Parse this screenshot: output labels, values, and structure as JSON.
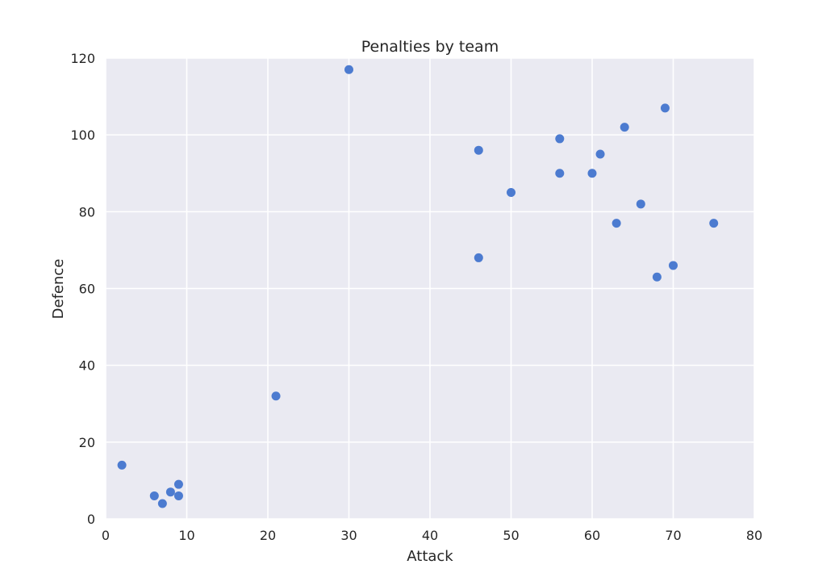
{
  "chart_data": {
    "type": "scatter",
    "title": "Penalties by team",
    "xlabel": "Attack",
    "ylabel": "Defence",
    "xlim": [
      0,
      80
    ],
    "ylim": [
      0,
      120
    ],
    "xticks": [
      "0",
      "10",
      "20",
      "30",
      "40",
      "50",
      "60",
      "70",
      "80"
    ],
    "yticks": [
      "0",
      "20",
      "40",
      "60",
      "80",
      "100",
      "120"
    ],
    "grid": true,
    "background_color": "#eaeaf2",
    "grid_color": "#ffffff",
    "point_color": "#4c7bd0",
    "points": [
      {
        "x": 2,
        "y": 14
      },
      {
        "x": 6,
        "y": 6
      },
      {
        "x": 7,
        "y": 4
      },
      {
        "x": 8,
        "y": 7
      },
      {
        "x": 9,
        "y": 9
      },
      {
        "x": 9,
        "y": 6
      },
      {
        "x": 21,
        "y": 32
      },
      {
        "x": 30,
        "y": 117
      },
      {
        "x": 46,
        "y": 96
      },
      {
        "x": 46,
        "y": 68
      },
      {
        "x": 50,
        "y": 85
      },
      {
        "x": 56,
        "y": 99
      },
      {
        "x": 56,
        "y": 90
      },
      {
        "x": 60,
        "y": 90
      },
      {
        "x": 61,
        "y": 95
      },
      {
        "x": 63,
        "y": 77
      },
      {
        "x": 64,
        "y": 102
      },
      {
        "x": 66,
        "y": 82
      },
      {
        "x": 68,
        "y": 63
      },
      {
        "x": 69,
        "y": 107
      },
      {
        "x": 70,
        "y": 66
      },
      {
        "x": 75,
        "y": 77
      }
    ]
  }
}
